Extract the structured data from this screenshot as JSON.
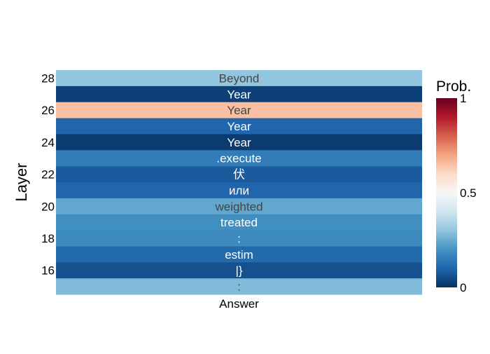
{
  "chart_data": {
    "type": "heatmap",
    "x_categories": [
      "Answer"
    ],
    "y_categories": [
      15,
      16,
      17,
      18,
      19,
      20,
      21,
      22,
      23,
      24,
      25,
      26,
      27,
      28
    ],
    "y_tick_labels": [
      "16",
      "18",
      "20",
      "22",
      "24",
      "26",
      "28"
    ],
    "y_tick_values": [
      16,
      18,
      20,
      22,
      24,
      26,
      28
    ],
    "ylabel": "Layer",
    "colorbar": {
      "title": "Prob.",
      "ticks": [
        0,
        0.5,
        1
      ],
      "tick_labels": [
        "0",
        "0.5",
        "1"
      ],
      "colorscale": "RdBu_reversed",
      "range": [
        0,
        1
      ]
    },
    "rows": [
      {
        "layer": 28,
        "token": "Beyond",
        "value": 0.3
      },
      {
        "layer": 27,
        "token": "Year",
        "value": 0.03
      },
      {
        "layer": 26,
        "token": "Year",
        "value": 0.65
      },
      {
        "layer": 25,
        "token": "Year",
        "value": 0.1
      },
      {
        "layer": 24,
        "token": "Year",
        "value": 0.02
      },
      {
        "layer": 23,
        "token": ".execute",
        "value": 0.15
      },
      {
        "layer": 22,
        "token": "伏",
        "value": 0.08
      },
      {
        "layer": 21,
        "token": "или",
        "value": 0.1
      },
      {
        "layer": 20,
        "token": "weighted",
        "value": 0.24
      },
      {
        "layer": 19,
        "token": "treated",
        "value": 0.19
      },
      {
        "layer": 18,
        "token": ":",
        "value": 0.18
      },
      {
        "layer": 17,
        "token": "estim",
        "value": 0.11
      },
      {
        "layer": 16,
        "token": "|}",
        "value": 0.06
      },
      {
        "layer": 15,
        "token": ":",
        "value": 0.28
      }
    ]
  }
}
